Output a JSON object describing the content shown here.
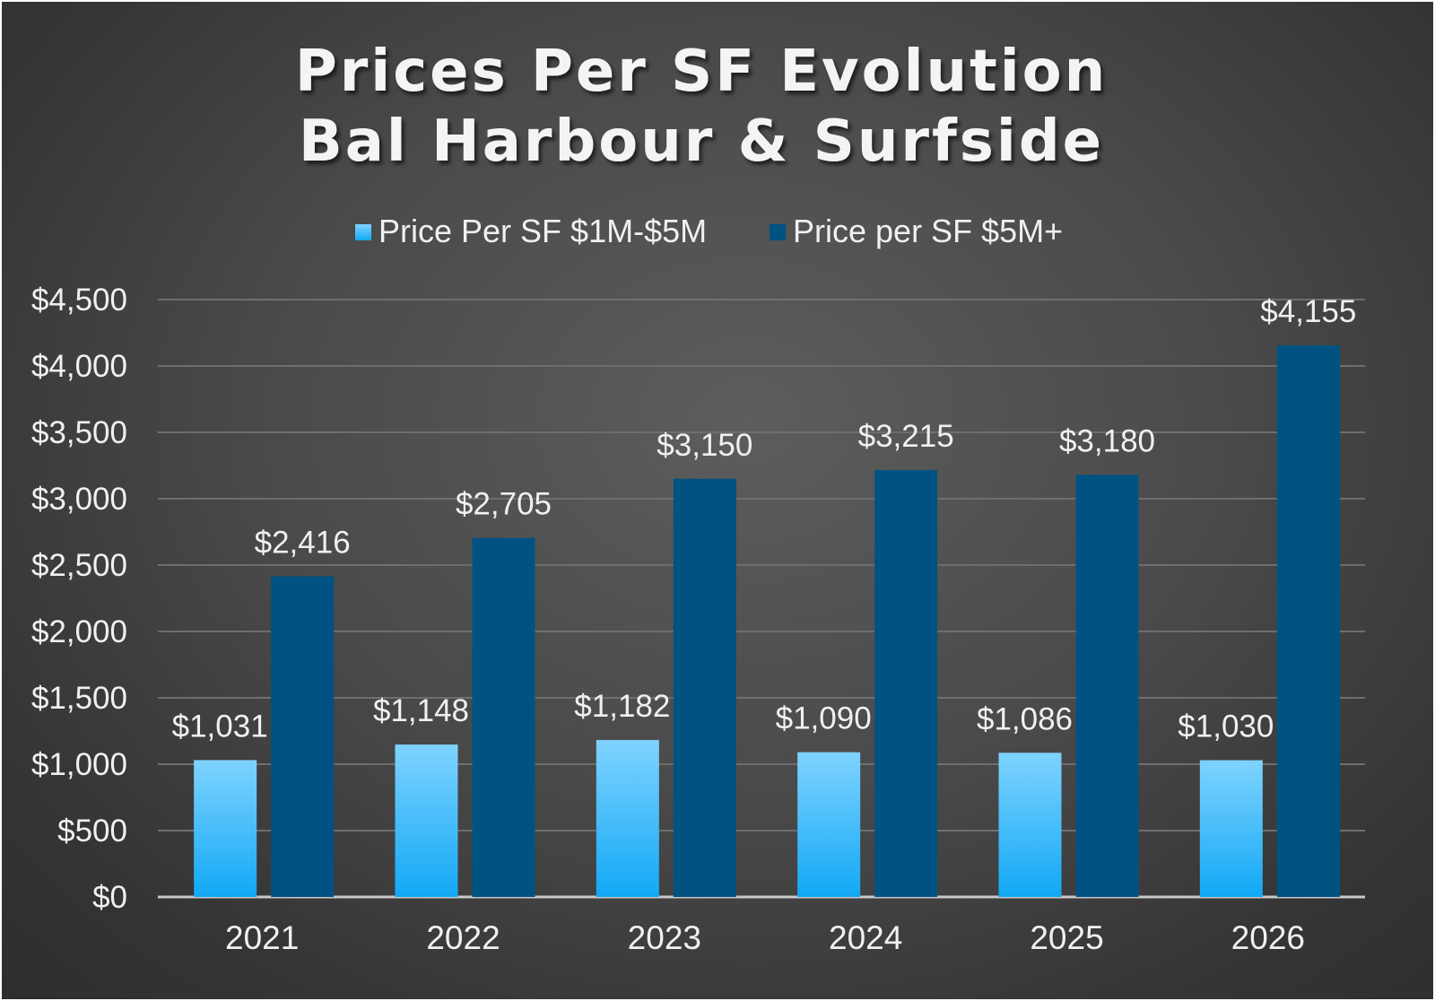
{
  "chart_data": {
    "type": "bar",
    "title": [
      "Prices Per SF Evolution",
      "Bal Harbour & Surfside"
    ],
    "xlabel": "",
    "ylabel": "",
    "categories": [
      "2021",
      "2022",
      "2023",
      "2024",
      "2025",
      "2026"
    ],
    "series": [
      {
        "name": "Price Per SF $1M-$5M",
        "values": [
          1031,
          1148,
          1182,
          1090,
          1086,
          1030
        ],
        "labels": [
          "$1,031",
          "$1,148",
          "$1,182",
          "$1,090",
          "$1,086",
          "$1,030"
        ],
        "color": "#5ac8fa"
      },
      {
        "name": "Price per SF $5M+",
        "values": [
          2416,
          2705,
          3150,
          3215,
          3180,
          4155
        ],
        "labels": [
          "$2,416",
          "$2,705",
          "$3,150",
          "$3,215",
          "$3,180",
          "$4,155"
        ],
        "color": "#005283"
      }
    ],
    "ylim": [
      0,
      4500
    ],
    "yticks": [
      "$0",
      "$500",
      "$1,000",
      "$1,500",
      "$2,000",
      "$2,500",
      "$3,000",
      "$3,500",
      "$4,000",
      "$4,500"
    ],
    "grid": true,
    "legend_position": "top-center"
  }
}
